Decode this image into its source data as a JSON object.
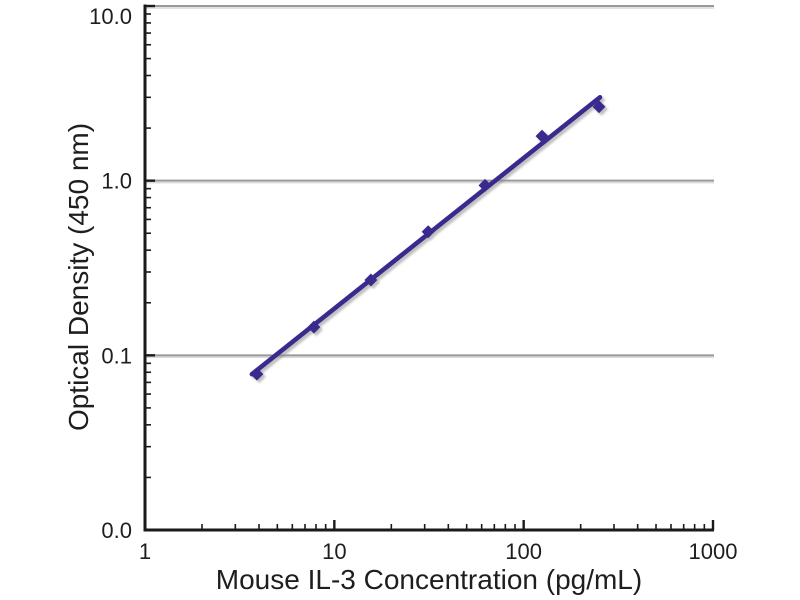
{
  "chart_data": {
    "type": "scatter",
    "title": "",
    "xlabel": "Mouse IL-3 Concentration (pg/mL)",
    "ylabel": "Optical Density (450 nm)",
    "x_scale": "log",
    "y_scale": "log",
    "xlim": [
      1,
      1000
    ],
    "ylim": [
      0.01,
      10
    ],
    "grid": "horizontal-only",
    "legend": "none",
    "x_ticks": [
      {
        "value": 1,
        "label": "1"
      },
      {
        "value": 10,
        "label": "10"
      },
      {
        "value": 100,
        "label": "100"
      },
      {
        "value": 1000,
        "label": "1000"
      }
    ],
    "y_ticks": [
      {
        "value": 10,
        "label": "10.0"
      },
      {
        "value": 1,
        "label": "1.0"
      },
      {
        "value": 0.1,
        "label": "0.1"
      },
      {
        "value": 0.01,
        "label": "0.0"
      }
    ],
    "y_gridlines": [
      10,
      1,
      0.1
    ],
    "series": [
      {
        "name": "mouse-il3-standard-curve",
        "marker": "diamond",
        "color": "#3a2b8e",
        "points": [
          {
            "x": 3.9,
            "y": 0.078
          },
          {
            "x": 7.8,
            "y": 0.145
          },
          {
            "x": 15.6,
            "y": 0.27
          },
          {
            "x": 31.3,
            "y": 0.51
          },
          {
            "x": 62.5,
            "y": 0.94
          },
          {
            "x": 125,
            "y": 1.8
          },
          {
            "x": 250,
            "y": 2.65
          }
        ],
        "trendline": {
          "x1": 3.67,
          "y1": 0.078,
          "x2": 253,
          "y2": 3.0
        }
      }
    ],
    "colors": {
      "line": "#3a2b8e",
      "marker": "#3a2b8e",
      "axis": "#1a1a1a",
      "grid": "#999999",
      "grid_shadow": "#d9d9d9",
      "text": "#1e1e1e",
      "background": "#ffffff"
    }
  }
}
